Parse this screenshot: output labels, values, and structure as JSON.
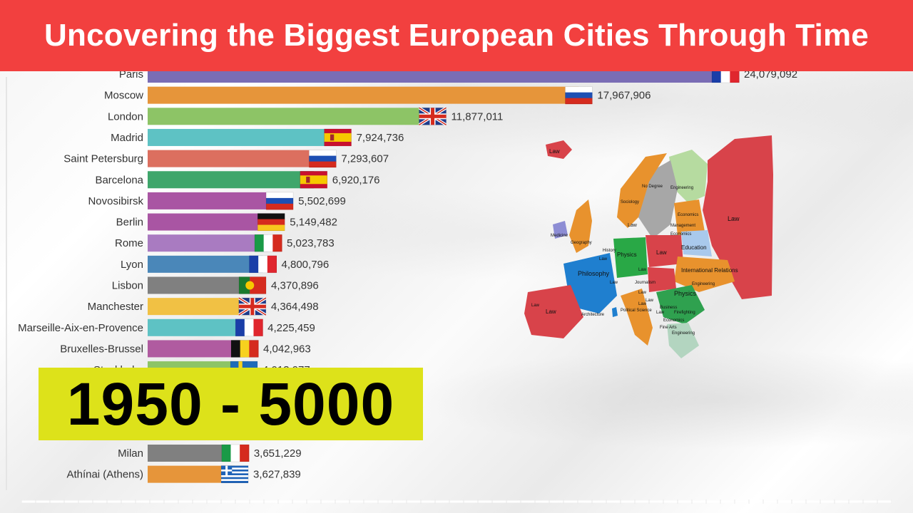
{
  "banner": {
    "title": "Uncovering the Biggest European Cities Through Time"
  },
  "year_label": "1950 - 5000",
  "colors": {
    "banner": "#f2403f",
    "year_box": "#dde21a"
  },
  "chart_data": {
    "type": "bar",
    "orientation": "horizontal",
    "categories": [
      "Paris",
      "Moscow",
      "London",
      "Madrid",
      "Saint Petersburg",
      "Barcelona",
      "Novosibirsk",
      "Berlin",
      "Rome",
      "Lyon",
      "Lisbon",
      "Manchester",
      "Marseille-Aix-en-Provence",
      "Bruxelles-Brussel",
      "Stockholm",
      "Milan",
      "Athínai (Athens)"
    ],
    "values": [
      24079092,
      17967906,
      11877011,
      7924736,
      7293607,
      6920176,
      5502699,
      5149482,
      5023783,
      4800796,
      4370896,
      4364498,
      4225459,
      4042963,
      4013977,
      3651229,
      3627839
    ],
    "value_labels": [
      "24,079,092",
      "17,967,906",
      "11,877,011",
      "7,924,736",
      "7,293,607",
      "6,920,176",
      "5,502,699",
      "5,149,482",
      "5,023,783",
      "4,800,796",
      "4,370,896",
      "4,364,498",
      "4,225,459",
      "4,042,963",
      "4,013,977",
      "3,651,229",
      "3,627,839"
    ],
    "flags": [
      "France",
      "Russia",
      "United Kingdom",
      "Spain",
      "Russia",
      "Spain",
      "Russia",
      "Germany",
      "Italy",
      "France",
      "Portugal",
      "United Kingdom",
      "France",
      "Belgium",
      "Sweden",
      "Italy",
      "Greece"
    ],
    "bar_colors": [
      "#7a6db5",
      "#e6953a",
      "#8dc466",
      "#5ec2c4",
      "#dc6f5f",
      "#3fa66b",
      "#a955a3",
      "#a955a3",
      "#a97bc1",
      "#4a87b9",
      "#808080",
      "#f1c144",
      "#5ec2c4",
      "#b05ba0",
      "#8dc466",
      "#808080",
      "#e6953a"
    ],
    "title": "",
    "xlabel": "",
    "ylabel": ""
  },
  "map": {
    "labels": [
      "Law",
      "Law",
      "No Degree",
      "Engineering",
      "Sociology",
      "Economics",
      "Law",
      "Medicine",
      "Management",
      "Geography",
      "Economics",
      "Education",
      "History",
      "Physics",
      "Law",
      "Law",
      "Philosophy",
      "Law",
      "International Relations",
      "Law",
      "Journalism",
      "Law",
      "Physics",
      "Engineering",
      "Law",
      "Law",
      "Law",
      "Law",
      "Architecture",
      "Political Science",
      "Business",
      "Law",
      "Firefighting",
      "Economics",
      "Fine Arts",
      "Engineering"
    ]
  }
}
